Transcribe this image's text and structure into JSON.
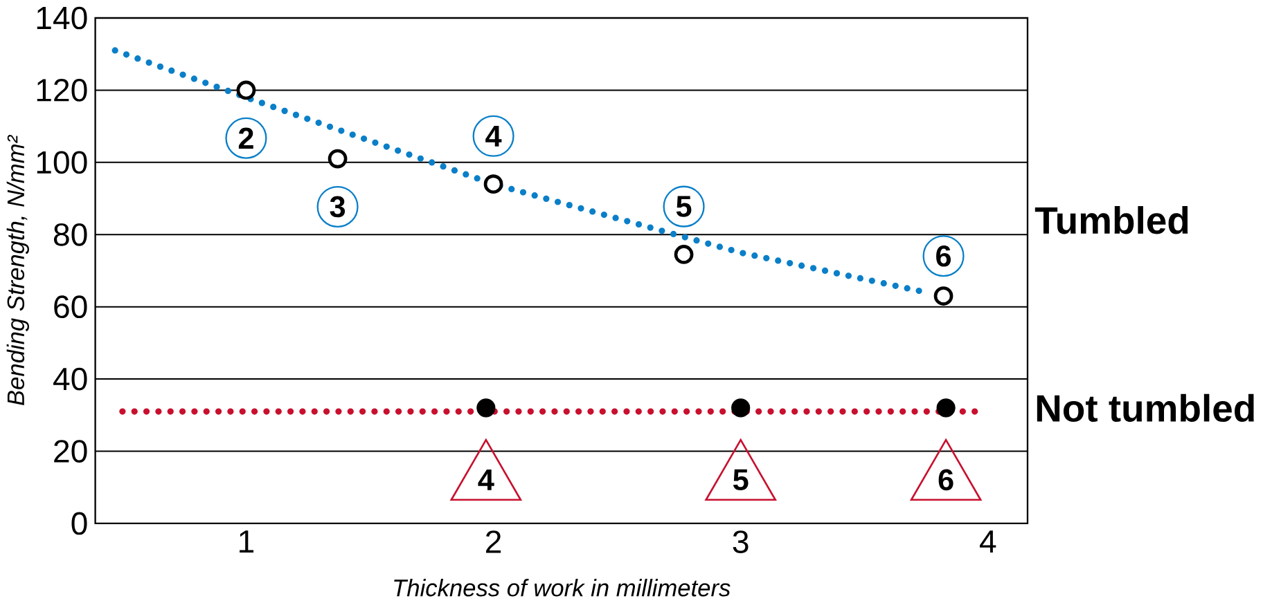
{
  "chart_data": {
    "type": "scatter",
    "xlabel": "Thickness of work in millimeters",
    "ylabel": "Bending Strength, N/mm²",
    "xlim": [
      0.39,
      4.16
    ],
    "xticks": [
      1,
      2,
      3,
      4
    ],
    "ylim": [
      0,
      140
    ],
    "yticks": [
      0,
      20,
      40,
      60,
      80,
      100,
      120,
      140
    ],
    "grid": "y",
    "series": [
      {
        "name": "Tumbled",
        "marker": "circle",
        "color": "#000000",
        "x": [
          1,
          1.37,
          2,
          2.77,
          3.82
        ],
        "values": [
          120,
          101,
          94,
          74.5,
          63
        ]
      },
      {
        "name": "Not tumbled",
        "marker": "circle",
        "color": "#000000",
        "x": [
          1.97,
          3.0,
          3.83
        ],
        "values": [
          32,
          32,
          32
        ]
      },
      {
        "type": "line",
        "marker": "none",
        "line_style": "dotted",
        "color": "#0a7fc8",
        "x": [
          0.47,
          1,
          2,
          3,
          3.75
        ],
        "values": [
          131,
          118,
          94,
          75,
          64
        ]
      },
      {
        "type": "line",
        "marker": "none",
        "line_style": "dotted",
        "color": "#c8102e",
        "x": [
          0.5,
          3.95
        ],
        "values": [
          31,
          31
        ]
      }
    ],
    "annotations": [
      {
        "text": "2",
        "x": 1,
        "y": 120
      },
      {
        "text": "3",
        "x": 1.37,
        "y": 101
      },
      {
        "text": "4",
        "x": 2,
        "y": 94
      },
      {
        "text": "5",
        "x": 2.77,
        "y": 74.5
      },
      {
        "text": "6",
        "x": 3.82,
        "y": 63
      },
      {
        "text": "4",
        "x": 1.97,
        "y": 32
      },
      {
        "text": "5",
        "x": 3.0,
        "y": 32
      },
      {
        "text": "6",
        "x": 3.83,
        "y": 32
      }
    ]
  }
}
